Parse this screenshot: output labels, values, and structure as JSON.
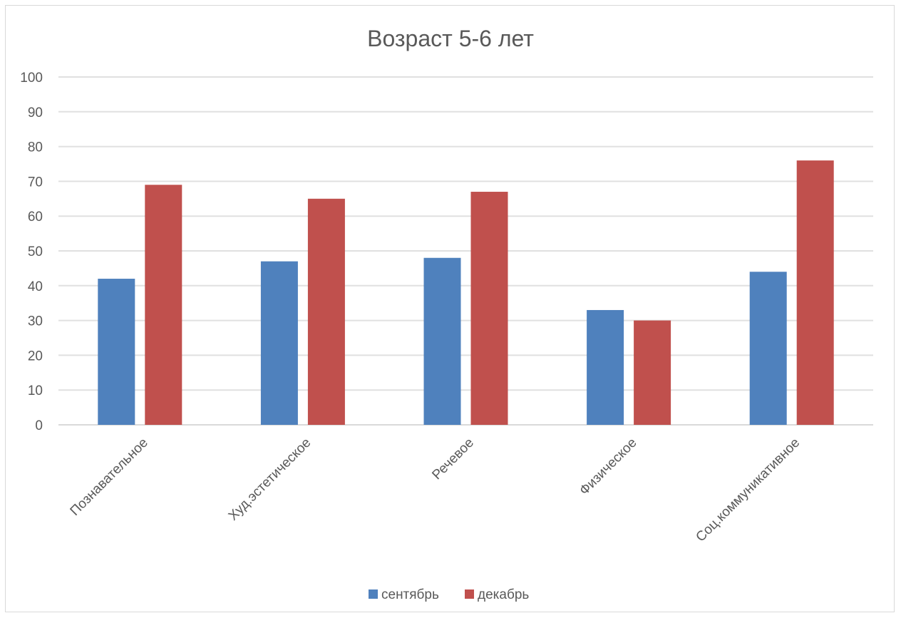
{
  "chart_data": {
    "type": "bar",
    "title": "Возраст 5-6 лет",
    "categories": [
      "Познавательное",
      "Худ.эстетическое",
      "Речевое",
      "Физическое",
      "Соц.коммуникативное"
    ],
    "series": [
      {
        "name": "сентябрь",
        "color": "#4f81bd",
        "values": [
          42,
          47,
          48,
          33,
          44
        ]
      },
      {
        "name": "декабрь",
        "color": "#c0504d",
        "values": [
          69,
          65,
          67,
          30,
          76
        ]
      }
    ],
    "ylim": [
      0,
      100
    ],
    "yticks": [
      0,
      10,
      20,
      30,
      40,
      50,
      60,
      70,
      80,
      90,
      100
    ],
    "grid": true,
    "legend_position": "bottom",
    "xlabel": "",
    "ylabel": ""
  }
}
